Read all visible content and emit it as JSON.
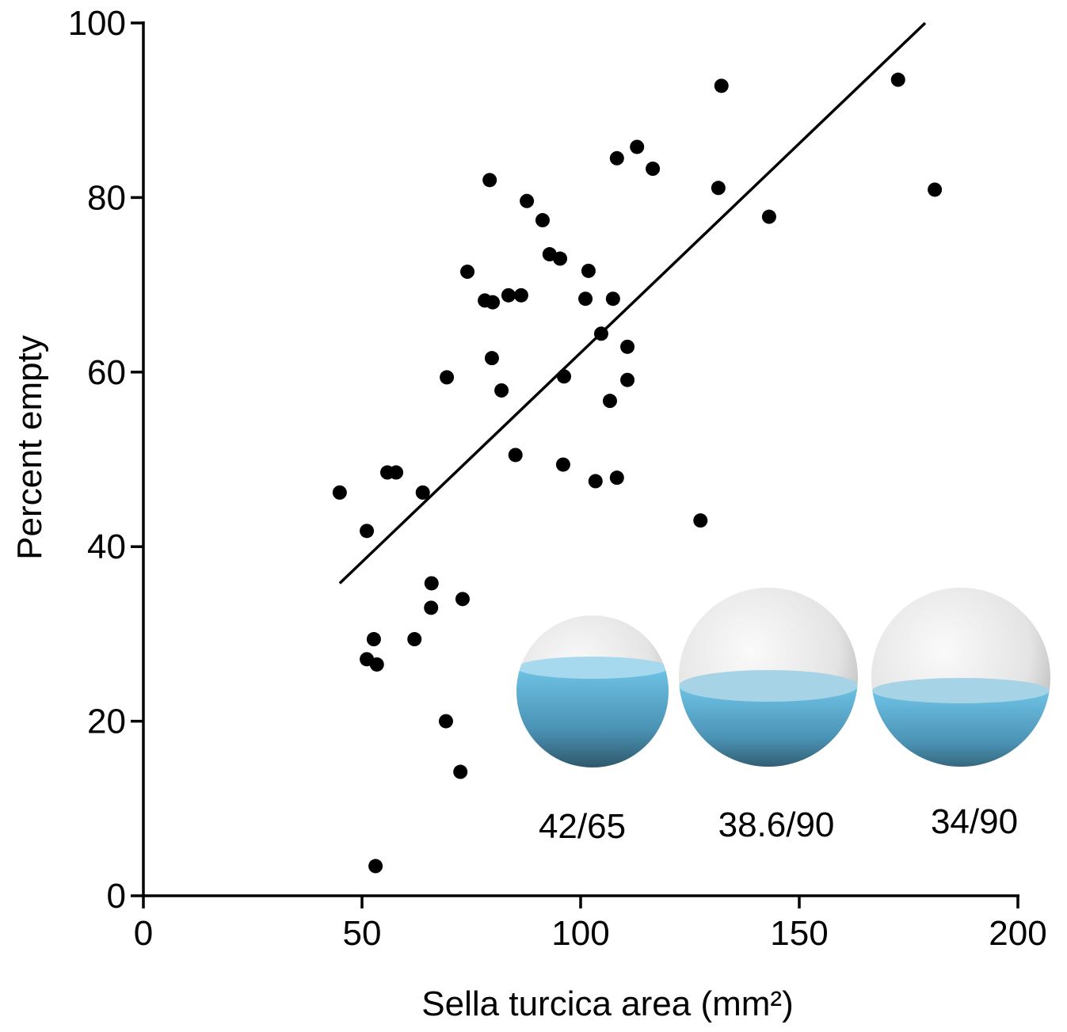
{
  "chart_data": {
    "type": "scatter",
    "xlabel": "Sella turcica area (mm²)",
    "ylabel": "Percent empty",
    "xlim": [
      0,
      200
    ],
    "xticks": [
      0,
      50,
      100,
      150,
      200
    ],
    "ylim": [
      0,
      100
    ],
    "yticks": [
      0,
      20,
      40,
      60,
      80,
      100
    ],
    "color": "#000000",
    "x": [
      44.9,
      51.1,
      52.7,
      51.1,
      53.4,
      53.1,
      55.8,
      57.8,
      63.9,
      62.0,
      65.9,
      65.8,
      69.4,
      69.2,
      73.0,
      72.5,
      74.1,
      78.1,
      79.9,
      79.2,
      79.7,
      81.9,
      83.5,
      86.4,
      85.1,
      87.7,
      91.3,
      92.9,
      95.3,
      96.2,
      96.0,
      101.8,
      101.1,
      103.4,
      104.7,
      107.4,
      106.7,
      108.3,
      108.3,
      112.9,
      110.7,
      110.7,
      116.5,
      127.4,
      131.5,
      132.2,
      143.1,
      172.6,
      181.0
    ],
    "values": [
      46.2,
      41.8,
      29.4,
      27.1,
      26.5,
      3.4,
      48.5,
      48.5,
      46.2,
      29.4,
      35.8,
      33.0,
      59.4,
      20.0,
      34.0,
      14.2,
      71.5,
      68.2,
      68.0,
      82.0,
      61.6,
      57.9,
      68.8,
      68.8,
      50.5,
      79.6,
      77.4,
      73.5,
      73.0,
      59.5,
      49.4,
      71.6,
      68.4,
      47.5,
      64.4,
      68.4,
      56.7,
      47.9,
      84.5,
      85.8,
      62.9,
      59.1,
      83.3,
      43.0,
      81.1,
      92.8,
      77.8,
      93.5,
      80.9
    ],
    "trendline": {
      "x": [
        44.9,
        178.8
      ],
      "values": [
        35.8,
        100
      ]
    },
    "annotations": [
      "42/65",
      "38.6/90",
      "34/90"
    ]
  }
}
